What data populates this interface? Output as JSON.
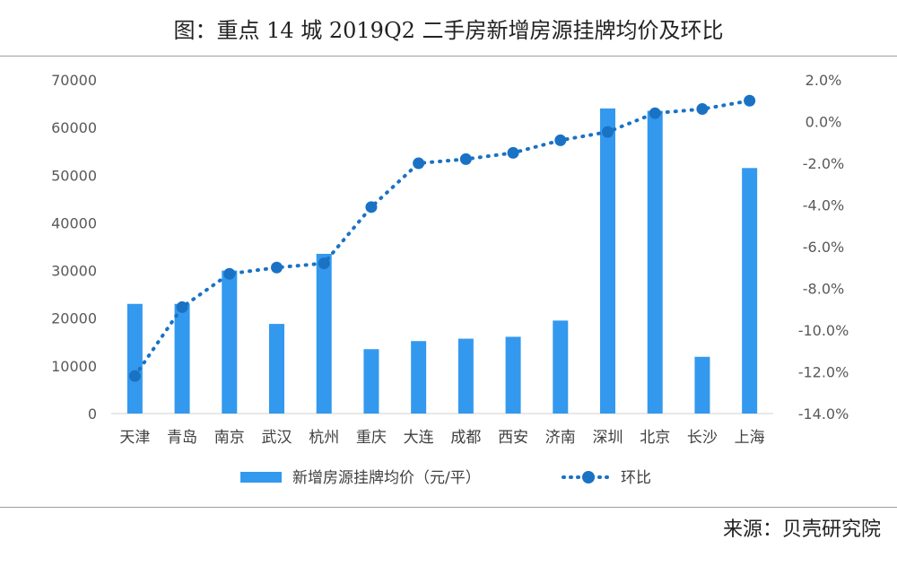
{
  "title": "图：重点 14 城 2019Q2 二手房新增房源挂牌均价及环比",
  "source": "来源：贝壳研究院",
  "chart_data": {
    "type": "bar",
    "title": "图：重点 14 城 2019Q2 二手房新增房源挂牌均价及环比",
    "categories": [
      "天津",
      "青岛",
      "南京",
      "武汉",
      "杭州",
      "重庆",
      "大连",
      "成都",
      "西安",
      "济南",
      "深圳",
      "北京",
      "长沙",
      "上海"
    ],
    "series": [
      {
        "name": "新增房源挂牌均价（元/平）",
        "type": "bar",
        "axis": "left",
        "color": "#3399ee",
        "values": [
          23000,
          23000,
          30000,
          18800,
          33500,
          13500,
          15200,
          15700,
          16100,
          19500,
          64000,
          63500,
          11900,
          51500
        ]
      },
      {
        "name": "环比",
        "type": "line",
        "style": "dotted",
        "axis": "right",
        "color": "#1a72c4",
        "values": [
          -12.2,
          -8.9,
          -7.3,
          -7.0,
          -6.8,
          -4.1,
          -2.0,
          -1.8,
          -1.5,
          -0.9,
          -0.5,
          0.4,
          0.6,
          1.0
        ]
      }
    ],
    "y_left": {
      "min": 0,
      "max": 70000,
      "ticks": [
        "0",
        "10000",
        "20000",
        "30000",
        "40000",
        "50000",
        "60000",
        "70000"
      ]
    },
    "y_right": {
      "min": -14,
      "max": 2,
      "ticks": [
        "-14.0%",
        "-12.0%",
        "-10.0%",
        "-8.0%",
        "-6.0%",
        "-4.0%",
        "-2.0%",
        "0.0%",
        "2.0%"
      ]
    },
    "grid": false,
    "legend": "bottom"
  }
}
